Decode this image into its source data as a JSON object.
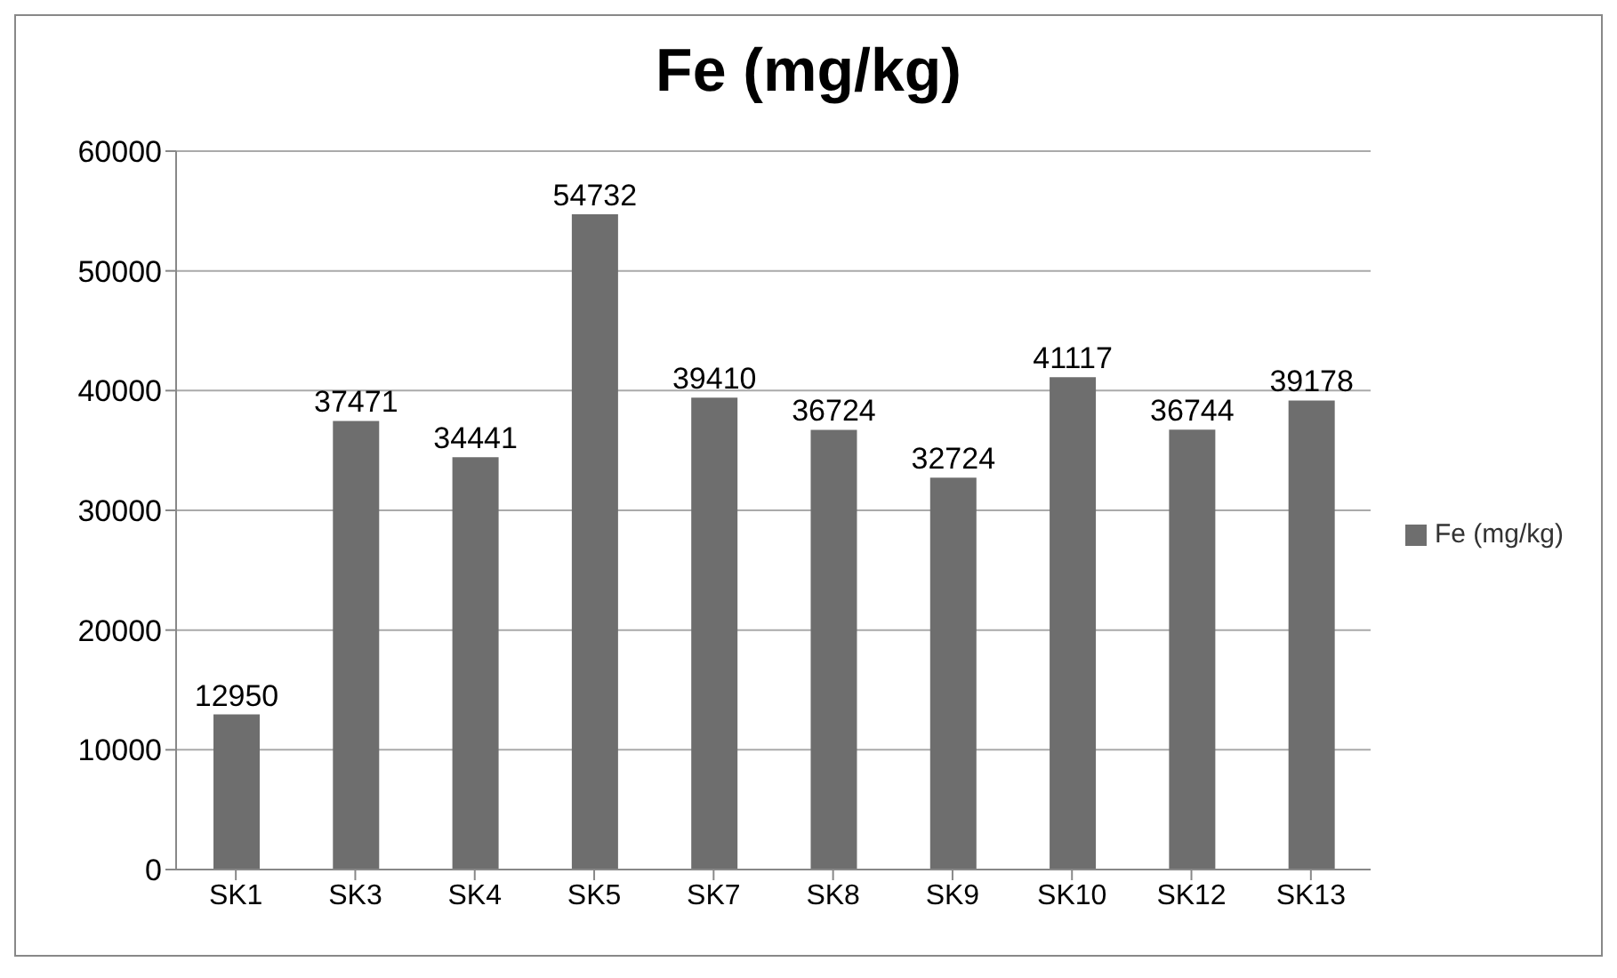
{
  "chart_data": {
    "type": "bar",
    "title": "Fe (mg/kg)",
    "categories": [
      "SK1",
      "SK3",
      "SK4",
      "SK5",
      "SK7",
      "SK8",
      "SK9",
      "SK10",
      "SK12",
      "SK13"
    ],
    "series": [
      {
        "name": "Fe (mg/kg)",
        "color": "#6e6e6e",
        "values": [
          12950,
          37471,
          34441,
          54732,
          39410,
          36724,
          32724,
          41117,
          36744,
          39178
        ]
      }
    ],
    "ylim": [
      0,
      60000
    ],
    "yticks": [
      0,
      10000,
      20000,
      30000,
      40000,
      50000,
      60000
    ],
    "grid": "y",
    "legend": "right",
    "data_labels": true
  }
}
